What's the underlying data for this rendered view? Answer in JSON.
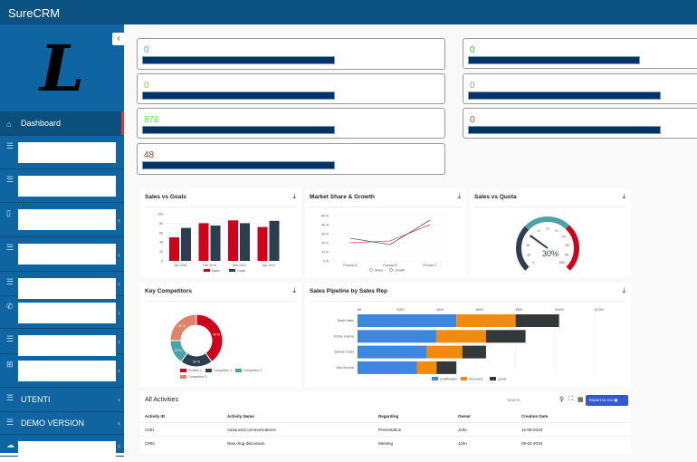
{
  "app": {
    "title": "SureCRM",
    "logo_letter": "L"
  },
  "sidebar": {
    "items": [
      {
        "label": "Dashboard",
        "icon": "home-icon"
      },
      {
        "label": "",
        "icon": "menu-icon"
      },
      {
        "label": "",
        "icon": "menu-icon"
      },
      {
        "label": "",
        "icon": "mobile-icon"
      },
      {
        "label": "",
        "icon": "menu-icon"
      },
      {
        "label": "",
        "icon": "menu-icon"
      },
      {
        "label": "",
        "icon": "phone-icon"
      },
      {
        "label": "",
        "icon": "menu-icon"
      },
      {
        "label": "",
        "icon": "sitemap-icon"
      },
      {
        "label": "UTENTI",
        "icon": "menu-icon"
      },
      {
        "label": "DEMO VERSION",
        "icon": "menu-icon"
      },
      {
        "label": "",
        "icon": "cloud-icon"
      }
    ]
  },
  "stats": [
    {
      "value": "0",
      "color": "#3aa8e8"
    },
    {
      "value": "0",
      "color": "#7ed321"
    },
    {
      "value": "876",
      "color": "#5ee04a"
    },
    {
      "value": "48",
      "color": "#8b4513"
    },
    {
      "value": "0",
      "color": "#22c33a"
    },
    {
      "value": "0",
      "color": "#999999"
    },
    {
      "value": "0",
      "color": "#c0502a"
    }
  ],
  "panels": {
    "sales_goals": "Sales vs Goals",
    "market": "Market Share & Growth",
    "quota": "Sales vs Quota",
    "competitors": "Key Competitors",
    "pipeline": "Sales Pipeline by Sales Rep"
  },
  "chart_data": [
    {
      "type": "bar",
      "title": "Sales vs Goals",
      "categories": [
        "Jan 2019",
        "Feb 2019",
        "Mar 2019",
        "Apr 2019"
      ],
      "series": [
        {
          "name": "Sales",
          "values": [
            50,
            80,
            86,
            72
          ],
          "color": "#d0021b"
        },
        {
          "name": "Goals",
          "values": [
            70,
            75,
            80,
            85
          ],
          "color": "#2c3e50"
        }
      ],
      "ylim": [
        0,
        100
      ],
      "yticks": [
        0,
        20,
        40,
        60,
        80,
        100
      ]
    },
    {
      "type": "line",
      "title": "Market Share & Growth",
      "categories": [
        "Product A",
        "Product B",
        "Product C"
      ],
      "series": [
        {
          "name": "Share",
          "values": [
            20,
            22,
            40
          ],
          "color": "#e8455a"
        },
        {
          "name": "Growth",
          "values": [
            25,
            18,
            45
          ],
          "color": "#4a5a70"
        }
      ],
      "ylim": [
        0,
        50
      ],
      "yticks": [
        "0 %",
        "10 %",
        "20 %",
        "30 %",
        "40 %",
        "50 %"
      ]
    },
    {
      "type": "gauge",
      "title": "Sales vs Quota",
      "value": 30,
      "label": "30%",
      "ticks": [
        0,
        10,
        20,
        30,
        40,
        50,
        60,
        70,
        80,
        90,
        100
      ]
    },
    {
      "type": "pie",
      "title": "Key Competitors",
      "labels": [
        "Product 1",
        "Competitor 1",
        "Competitor 2",
        "Competitor 3"
      ],
      "values": [
        40,
        20,
        15,
        25
      ],
      "colors": [
        "#d0021b",
        "#2c3e50",
        "#4aa3a8",
        "#e0826a"
      ]
    },
    {
      "type": "bar",
      "orientation": "horizontal",
      "stacked": true,
      "title": "Sales Pipeline by Sales Rep",
      "categories": [
        "Mack Hales",
        "Jimmy Joanna",
        "Joanna Carter",
        "Alex Morrow"
      ],
      "series": [
        {
          "name": "Qualification",
          "values": [
            500,
            400,
            350,
            300
          ],
          "color": "#3d87e0"
        },
        {
          "name": "Discovery",
          "values": [
            300,
            250,
            180,
            100
          ],
          "color": "#f28a10"
        },
        {
          "name": "Quote",
          "values": [
            220,
            200,
            120,
            100
          ],
          "color": "#33383b"
        }
      ],
      "xlim": [
        0,
        1200
      ],
      "xticks": [
        "$0",
        "$200",
        "$400",
        "$600",
        "$800",
        "$1000",
        "$1200"
      ]
    }
  ],
  "activities": {
    "title": "All Activities",
    "search_placeholder": "Search",
    "export_label": "Export to csv",
    "columns": [
      "Activity ID",
      "Activity Name",
      "Regarding",
      "Owner",
      "Creation Date"
    ],
    "rows": [
      [
        "C001",
        "Advanced communications",
        "Presentation",
        "John",
        "12-09-2019"
      ],
      [
        "C002",
        "New drug discussion",
        "Meeting",
        "John",
        "09-02-2019"
      ]
    ]
  }
}
